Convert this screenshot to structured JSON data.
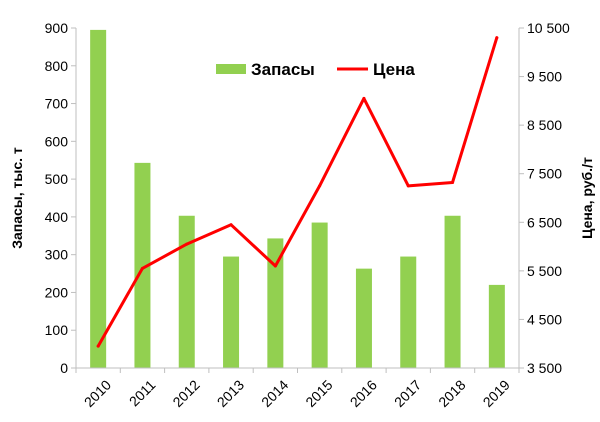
{
  "chart_data": {
    "type": "bar+line",
    "categories": [
      "2010",
      "2011",
      "2012",
      "2013",
      "2014",
      "2015",
      "2016",
      "2017",
      "2018",
      "2019"
    ],
    "series": [
      {
        "name": "Запасы",
        "type": "bar",
        "axis": "left",
        "color": "#92D050",
        "values": [
          895,
          543,
          403,
          295,
          343,
          385,
          263,
          295,
          403,
          220
        ]
      },
      {
        "name": "Цена",
        "type": "line",
        "axis": "right",
        "color": "#FF0000",
        "values": [
          3950,
          5550,
          6050,
          6450,
          5600,
          7250,
          9050,
          7250,
          7320,
          10300
        ]
      }
    ],
    "y_left": {
      "label": "Запасы, тыс. т",
      "ylim": [
        0,
        900
      ],
      "ticks": [
        0,
        100,
        200,
        300,
        400,
        500,
        600,
        700,
        800,
        900
      ],
      "tick_labels": [
        "0",
        "100",
        "200",
        "300",
        "400",
        "500",
        "600",
        "700",
        "800",
        "900"
      ]
    },
    "y_right": {
      "label": "Цена, руб./т",
      "ylim": [
        3500,
        10500
      ],
      "ticks": [
        3500,
        4500,
        5500,
        6500,
        7500,
        8500,
        9500,
        10500
      ],
      "tick_labels": [
        "3 500",
        "4 500",
        "5 500",
        "6 500",
        "7 500",
        "8 500",
        "9 500",
        "10 500"
      ]
    },
    "legend": {
      "placement": "top-center",
      "items": [
        "Запасы",
        "Цена"
      ]
    },
    "grid": false
  }
}
